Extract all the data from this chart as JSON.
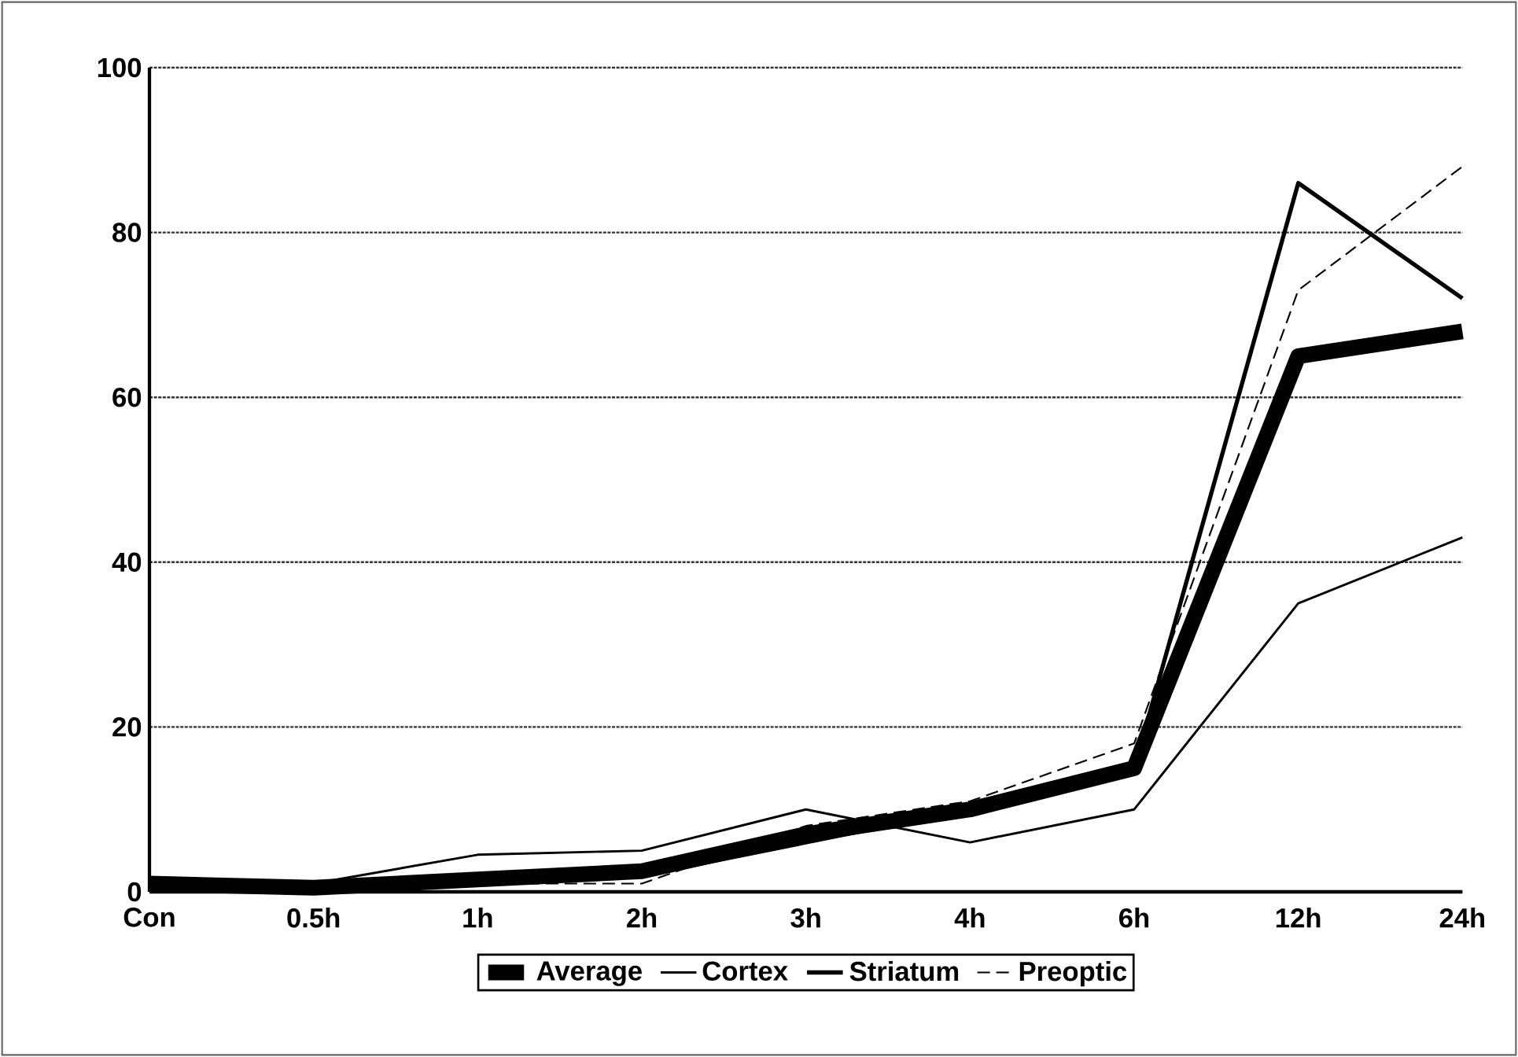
{
  "chart_data": {
    "type": "line",
    "categories": [
      "Con",
      "0.5h",
      "1h",
      "2h",
      "3h",
      "4h",
      "6h",
      "12h",
      "24h"
    ],
    "series": [
      {
        "name": "Average",
        "color": "#000000",
        "line_style": "solid",
        "values": [
          1,
          0.5,
          1.5,
          2.5,
          7,
          10,
          15,
          65,
          68
        ]
      },
      {
        "name": "Cortex",
        "color": "#000000",
        "line_style": "solid",
        "values": [
          1,
          1,
          4.5,
          5,
          10,
          6,
          10,
          35,
          43
        ]
      },
      {
        "name": "Striatum",
        "color": "#000000",
        "line_style": "solid",
        "values": [
          1,
          0.5,
          1,
          2,
          6,
          10,
          15,
          86,
          72
        ]
      },
      {
        "name": "Preoptic",
        "color": "#000000",
        "line_style": "dashed",
        "values": [
          1,
          0.5,
          1,
          1,
          8,
          11,
          18,
          73,
          88
        ]
      }
    ],
    "ylim": [
      0,
      100
    ],
    "yticks": [
      0,
      20,
      40,
      60,
      80,
      100
    ],
    "grid": "y",
    "legend": "bottom",
    "marker": "none"
  }
}
